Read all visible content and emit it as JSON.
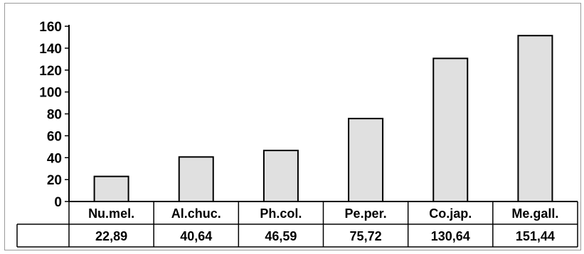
{
  "chart_data": {
    "type": "bar",
    "title": "",
    "xlabel": "",
    "ylabel": "",
    "categories": [
      "Nu.mel.",
      "Al.chuc.",
      "Ph.col.",
      "Pe.per.",
      "Co.jap.",
      "Me.gall."
    ],
    "values": [
      22.89,
      40.64,
      46.59,
      75.72,
      130.64,
      151.44
    ],
    "value_labels": [
      "22,89",
      "40,64",
      "46,59",
      "75,72",
      "130,64",
      "151,44"
    ],
    "ylim": [
      0,
      160
    ],
    "yticks": [
      0,
      20,
      40,
      60,
      80,
      100,
      120,
      140,
      160
    ],
    "grid": false,
    "legend": "none",
    "data_table": true,
    "bar_color": "#e0e0e0",
    "bar_edge_color": "#000000"
  }
}
